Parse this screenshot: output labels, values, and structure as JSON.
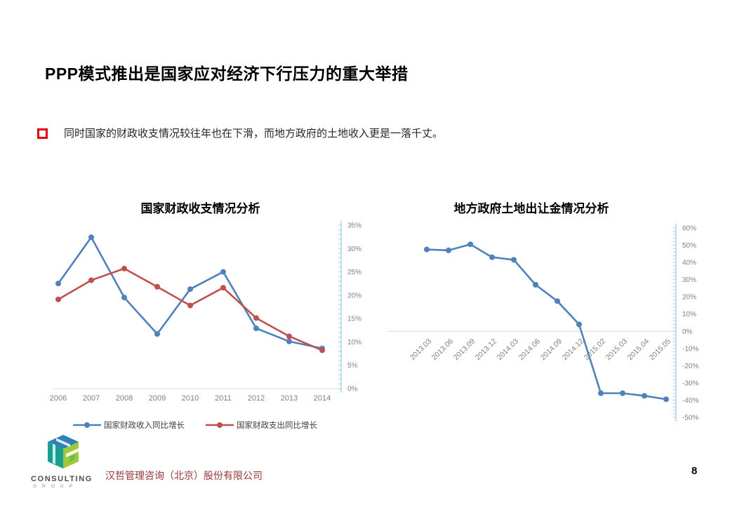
{
  "page": {
    "title": "PPP模式推出是国家应对经济下行压力的重大举措",
    "bullet_text": "同时国家的财政收支情况较往年也在下滑，而地方政府的土地收入更是一落千丈。",
    "page_number": "8"
  },
  "footer": {
    "company": "汉哲管理咨询（北京）股份有限公司",
    "logo_line1": "CONSULTING",
    "logo_line2": "GROUP"
  },
  "colors": {
    "series_blue": "#4F81BD",
    "series_red": "#C0504D",
    "axis_cyan": "#9CD2E4",
    "tick_label_gray": "#7F7F7F",
    "gridline_gray": "#D9D9D9",
    "bullet_red": "#DD0806",
    "footer_text_red": "#953735",
    "legend_text": "#404040"
  },
  "chart_data": [
    {
      "type": "line",
      "title": "国家财政收支情况分析",
      "categories": [
        "2006",
        "2007",
        "2008",
        "2009",
        "2010",
        "2011",
        "2012",
        "2013",
        "2014"
      ],
      "series": [
        {
          "name": "国家财政收入同比增长",
          "color_key": "series_blue",
          "values": [
            22.5,
            32.4,
            19.5,
            11.7,
            21.3,
            25.0,
            12.9,
            10.1,
            8.6
          ]
        },
        {
          "name": "国家财政支出同比增长",
          "color_key": "series_red",
          "values": [
            19.1,
            23.2,
            25.7,
            21.8,
            17.8,
            21.6,
            15.1,
            11.2,
            8.2
          ]
        }
      ],
      "ylim": [
        0,
        35
      ],
      "ytick_step": 5,
      "ytick_suffix": "%",
      "yaxis_side": "right",
      "legend_position": "bottom",
      "baseline": true,
      "grid": "baseline-only"
    },
    {
      "type": "line",
      "title": "地方政府土地出让金情况分析",
      "categories": [
        "2013.03",
        "2013.06",
        "2013.09",
        "2013.12",
        "2014.03",
        "2014.06",
        "2014.09",
        "2014.12",
        "2015.02",
        "2015.03",
        "2015.04",
        "2015.05"
      ],
      "series": [
        {
          "color_key": "series_blue",
          "values": [
            47.5,
            47.0,
            50.5,
            43.0,
            41.5,
            27.0,
            17.5,
            4.0,
            -36.0,
            -36.0,
            -37.5,
            -39.5
          ]
        }
      ],
      "ylim": [
        -50,
        60
      ],
      "ytick_step": 10,
      "ytick_suffix": "%",
      "yaxis_side": "right",
      "legend_position": "none",
      "baseline": true,
      "grid": "baseline-only"
    }
  ]
}
